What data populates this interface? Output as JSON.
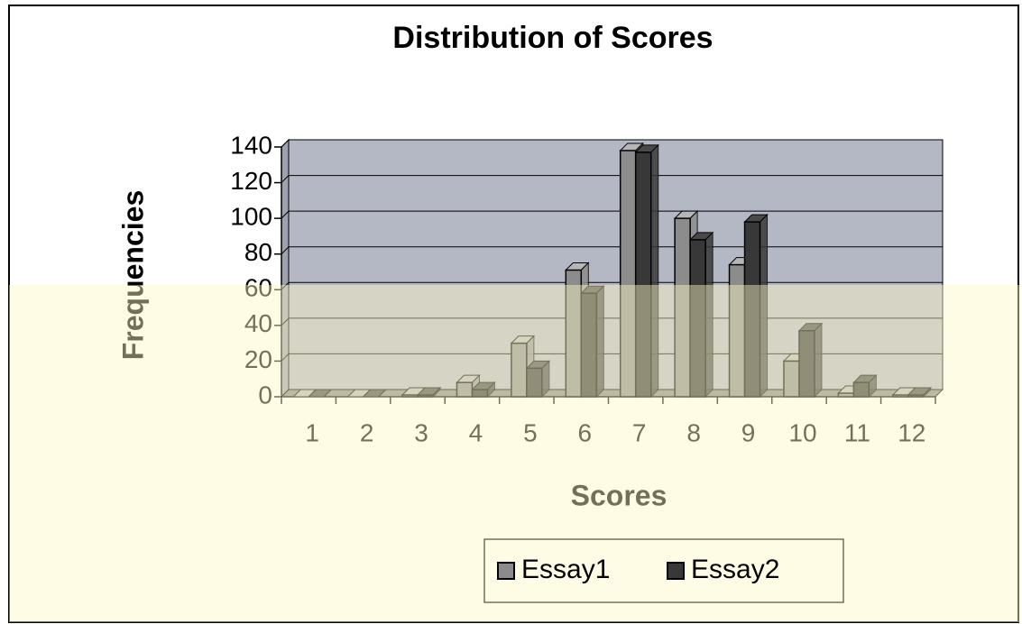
{
  "chart_data": {
    "type": "bar3d",
    "title": "Distribution of Scores",
    "x_label": "Scores",
    "y_label": "Frequencies",
    "categories": [
      "1",
      "2",
      "3",
      "4",
      "5",
      "6",
      "7",
      "8",
      "9",
      "10",
      "11",
      "12"
    ],
    "series": [
      {
        "name": "Essay1",
        "color": "#8c8c8c",
        "values": [
          0,
          0,
          1,
          8,
          30,
          71,
          138,
          100,
          74,
          20,
          2,
          1
        ]
      },
      {
        "name": "Essay2",
        "color": "#383838",
        "values": [
          0,
          0,
          1,
          4,
          16,
          58,
          137,
          88,
          98,
          37,
          8,
          1
        ]
      }
    ],
    "ylim": [
      0,
      140
    ],
    "yticks": [
      0,
      20,
      40,
      60,
      80,
      100,
      120,
      140
    ],
    "grid": true,
    "legend": "bottom"
  }
}
